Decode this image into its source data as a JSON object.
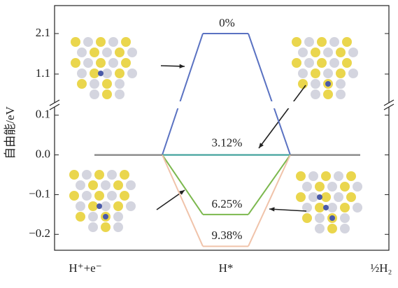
{
  "chart_data": {
    "type": "energy-step",
    "y_label": "自由能/eV",
    "categories": [
      "H⁺+e⁻",
      "H*",
      "½H₂"
    ],
    "series": [
      {
        "name": "0%",
        "color": "#5a72c2",
        "values": [
          0,
          2.1,
          0
        ]
      },
      {
        "name": "3.12%",
        "color": "#3aa39c",
        "values": [
          0,
          0,
          0
        ]
      },
      {
        "name": "6.25%",
        "color": "#7cb84e",
        "values": [
          0,
          -0.15,
          0
        ]
      },
      {
        "name": "9.38%",
        "color": "#f0c3aa",
        "values": [
          0,
          -0.23,
          0
        ]
      }
    ],
    "ylim": [
      -0.24,
      0.126
    ],
    "yticks": [
      {
        "value": -0.2,
        "label": "−0.2"
      },
      {
        "value": -0.1,
        "label": "−0.1"
      },
      {
        "value": 0,
        "label": "0.0"
      },
      0.1
    ],
    "ylim_upper": [
      0.34,
      2.79
    ],
    "yticks_upper": [
      1.1,
      2.1
    ],
    "axis_break": true
  }
}
